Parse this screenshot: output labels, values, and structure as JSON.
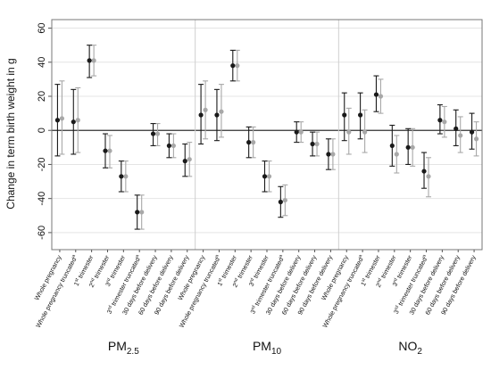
{
  "chart_data": {
    "type": "scatter",
    "subtype": "point-range (estimate with confidence interval), two estimates per category",
    "ylabel": "Change in term birth weight in g",
    "ylim": [
      -70,
      65
    ],
    "yticks": [
      -60,
      -40,
      -20,
      0,
      20,
      40,
      60
    ],
    "grid": true,
    "grid_direction": "horizontal",
    "reference_line_y": 0,
    "panels": [
      {
        "label_main": "PM",
        "label_sub": "2.5"
      },
      {
        "label_main": "PM",
        "label_sub": "10"
      },
      {
        "label_main": "NO",
        "label_sub": "2"
      }
    ],
    "categories": [
      {
        "text": "Whole pregnancy",
        "sup": "",
        "rest": ""
      },
      {
        "text": "Whole pregnancy truncated",
        "sup": "a",
        "rest": ""
      },
      {
        "text": "1",
        "sup": "st",
        "rest": " trimester"
      },
      {
        "text": "2",
        "sup": "nd",
        "rest": " trimester"
      },
      {
        "text": "3",
        "sup": "rd",
        "rest": " trimester"
      },
      {
        "text": "3",
        "sup": "rd",
        "rest": " trimester truncated",
        "sup2": "a"
      },
      {
        "text": "30 days before delivery",
        "sup": "",
        "rest": ""
      },
      {
        "text": "60 days before delivery",
        "sup": "",
        "rest": ""
      },
      {
        "text": "90 days before delivery",
        "sup": "",
        "rest": ""
      }
    ],
    "series_colors": {
      "first": "#1a1a1a",
      "second": "#a8a8a8"
    },
    "series": [
      {
        "panel": 0,
        "first": [
          [
            6,
            -15,
            27
          ],
          [
            5,
            -14,
            24
          ],
          [
            41,
            31,
            50
          ],
          [
            -12,
            -22,
            -2
          ],
          [
            -27,
            -36,
            -18
          ],
          [
            -48,
            -58,
            -38
          ],
          [
            -2,
            -9,
            4
          ],
          [
            -9,
            -16,
            -2
          ],
          [
            -18,
            -27,
            -8
          ]
        ],
        "second": [
          [
            7,
            -14,
            29
          ],
          [
            6,
            -13,
            25
          ],
          [
            41,
            32,
            50
          ],
          [
            -12,
            -22,
            -3
          ],
          [
            -27,
            -36,
            -18
          ],
          [
            -48,
            -58,
            -38
          ],
          [
            -2,
            -9,
            4
          ],
          [
            -9,
            -16,
            -2
          ],
          [
            -17,
            -27,
            -7
          ]
        ]
      },
      {
        "panel": 1,
        "first": [
          [
            9,
            -8,
            27
          ],
          [
            9,
            -6,
            24
          ],
          [
            38,
            29,
            47
          ],
          [
            -7,
            -16,
            2
          ],
          [
            -27,
            -36,
            -18
          ],
          [
            -42,
            -51,
            -33
          ],
          [
            -1,
            -7,
            5
          ],
          [
            -8,
            -15,
            -1
          ],
          [
            -14,
            -23,
            -5
          ]
        ],
        "second": [
          [
            12,
            -5,
            29
          ],
          [
            11,
            -4,
            27
          ],
          [
            38,
            29,
            47
          ],
          [
            -7,
            -16,
            2
          ],
          [
            -27,
            -36,
            -18
          ],
          [
            -41,
            -50,
            -32
          ],
          [
            -1,
            -7,
            5
          ],
          [
            -8,
            -15,
            -1
          ],
          [
            -14,
            -23,
            -5
          ]
        ]
      },
      {
        "panel": 2,
        "first": [
          [
            9,
            -6,
            22
          ],
          [
            9,
            -5,
            22
          ],
          [
            21,
            11,
            32
          ],
          [
            -9,
            -21,
            3
          ],
          [
            -10,
            -20,
            1
          ],
          [
            -24,
            -34,
            -13
          ],
          [
            6,
            -2,
            15
          ],
          [
            1,
            -9,
            12
          ],
          [
            -1,
            -11,
            10
          ]
        ],
        "second": [
          [
            -1,
            -14,
            13
          ],
          [
            -1,
            -13,
            12
          ],
          [
            20,
            10,
            30
          ],
          [
            -14,
            -25,
            -3
          ],
          [
            -10,
            -21,
            1
          ],
          [
            -27,
            -39,
            -16
          ],
          [
            5,
            -4,
            14
          ],
          [
            -3,
            -13,
            8
          ],
          [
            -5,
            -15,
            5
          ]
        ]
      }
    ]
  }
}
